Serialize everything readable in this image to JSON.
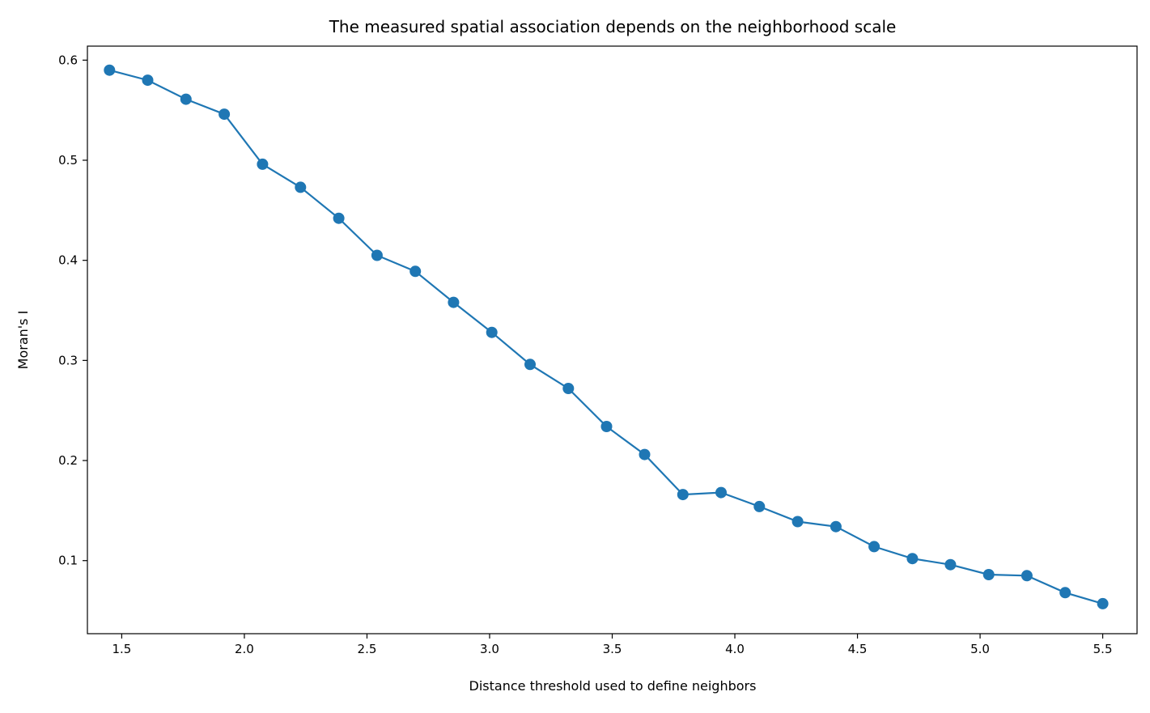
{
  "chart_data": {
    "type": "line",
    "title": "The measured spatial association depends on the neighborhood scale",
    "xlabel": "Distance threshold used to define neighbors",
    "ylabel": "Moran's I",
    "xlim": [
      1.36,
      5.64
    ],
    "ylim": [
      0.027,
      0.614
    ],
    "x_ticks": [
      "1.5",
      "2.0",
      "2.5",
      "3.0",
      "3.5",
      "4.0",
      "4.5",
      "5.0",
      "5.5"
    ],
    "y_ticks": [
      "0.1",
      "0.2",
      "0.3",
      "0.4",
      "0.5",
      "0.6"
    ],
    "grid": false,
    "legend": "none",
    "marker": "circle",
    "series": [
      {
        "color": "#1f77b4",
        "x": [
          1.45,
          1.606,
          1.762,
          1.918,
          2.074,
          2.229,
          2.385,
          2.541,
          2.697,
          2.853,
          3.009,
          3.165,
          3.321,
          3.477,
          3.632,
          3.788,
          3.944,
          4.1,
          4.256,
          4.412,
          4.568,
          4.724,
          4.879,
          5.035,
          5.191,
          5.347,
          5.5
        ],
        "y": [
          0.59,
          0.58,
          0.561,
          0.546,
          0.496,
          0.473,
          0.442,
          0.405,
          0.389,
          0.358,
          0.328,
          0.296,
          0.272,
          0.234,
          0.206,
          0.166,
          0.168,
          0.154,
          0.139,
          0.134,
          0.114,
          0.102,
          0.096,
          0.086,
          0.085,
          0.068,
          0.057
        ]
      }
    ]
  }
}
